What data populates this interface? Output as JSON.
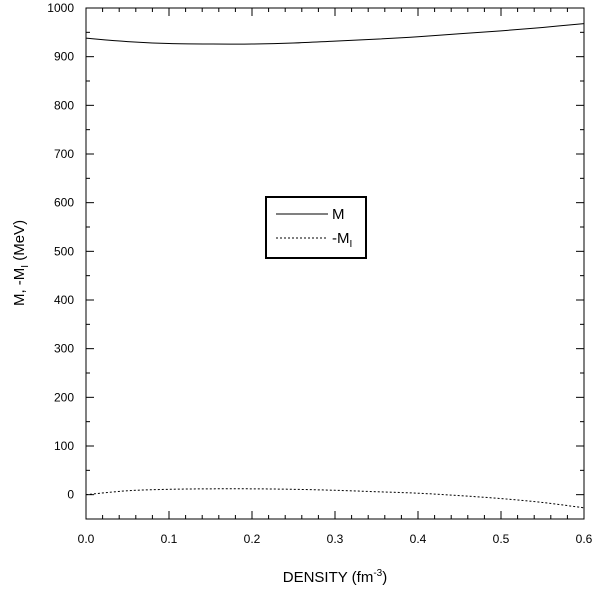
{
  "chart_data": {
    "type": "line",
    "xlabel": {
      "main": "DENSITY (fm",
      "sup": "-3",
      "tail": ")"
    },
    "ylabel": {
      "main": "M, -M",
      "sub": "I",
      "tail": " (MeV)"
    },
    "xlim": [
      0.0,
      0.6
    ],
    "ylim": [
      -50,
      1000
    ],
    "xticks": [
      "0.0",
      "0.1",
      "0.2",
      "0.3",
      "0.4",
      "0.5",
      "0.6"
    ],
    "xtick_values": [
      0.0,
      0.1,
      0.2,
      0.3,
      0.4,
      0.5,
      0.6
    ],
    "yticks": [
      "0",
      "100",
      "200",
      "300",
      "400",
      "500",
      "600",
      "700",
      "800",
      "900",
      "1000"
    ],
    "ytick_values": [
      0,
      100,
      200,
      300,
      400,
      500,
      600,
      700,
      800,
      900,
      1000
    ],
    "grid": false,
    "legend_position": "center",
    "series": [
      {
        "name": "M",
        "line_style": "solid",
        "color": "#000000",
        "x": [
          0.0,
          0.05,
          0.1,
          0.15,
          0.2,
          0.25,
          0.3,
          0.35,
          0.4,
          0.45,
          0.5,
          0.55,
          0.6
        ],
        "y": [
          938,
          931,
          927,
          926,
          926,
          928,
          932,
          936,
          941,
          947,
          953,
          960,
          968
        ]
      },
      {
        "name_main": "-M",
        "name_sub": "I",
        "line_style": "dashed",
        "color": "#000000",
        "x": [
          0.0,
          0.05,
          0.1,
          0.15,
          0.2,
          0.25,
          0.3,
          0.35,
          0.4,
          0.45,
          0.5,
          0.55,
          0.6
        ],
        "y": [
          0,
          8,
          11,
          12,
          12,
          11,
          9,
          6,
          3,
          -2,
          -8,
          -16,
          -27
        ]
      }
    ]
  }
}
